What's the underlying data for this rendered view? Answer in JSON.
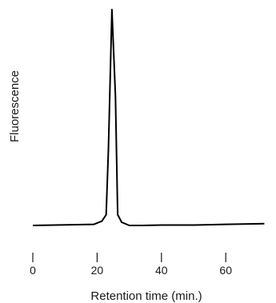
{
  "chart_data": {
    "type": "line",
    "xlabel": "Retention time (min.)",
    "ylabel": "Fluorescence",
    "xlim": [
      0,
      72
    ],
    "ylim": [
      0,
      1
    ],
    "x_ticks": [
      0,
      20,
      40,
      60
    ],
    "x_tick_labels": [
      "0",
      "20",
      "40",
      "60"
    ],
    "grid": false,
    "legend": "none",
    "series": [
      {
        "color": "#000000",
        "x": [
          0,
          19,
          21.5,
          22.8,
          23.5,
          24.6,
          25.7,
          26.4,
          27.6,
          30,
          34,
          40,
          50,
          60,
          72
        ],
        "y": [
          0,
          0.005,
          0.02,
          0.05,
          0.35,
          1.0,
          0.6,
          0.05,
          0.015,
          0.0,
          0.0,
          0.002,
          0.002,
          0.005,
          0.008
        ]
      }
    ]
  }
}
